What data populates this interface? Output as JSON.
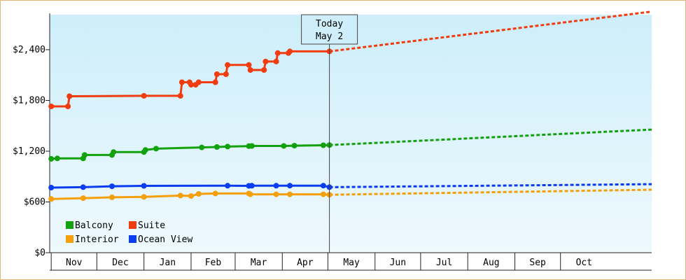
{
  "chart_data": {
    "type": "line",
    "title": "",
    "xlabel": "",
    "ylabel": "",
    "ylim": [
      0,
      2400
    ],
    "y_ticks": [
      {
        "value": 0,
        "label": "$0"
      },
      {
        "value": 600,
        "label": "$600"
      },
      {
        "value": 1200,
        "label": "$1,200"
      },
      {
        "value": 1800,
        "label": "$1,800"
      },
      {
        "value": 2400,
        "label": "$2,400"
      }
    ],
    "x_range": [
      "2023-10-31",
      "2024-11-30"
    ],
    "months": [
      {
        "label": "Nov",
        "start": "2023-11-01",
        "end": "2023-12-01"
      },
      {
        "label": "Dec",
        "start": "2023-12-01",
        "end": "2024-01-01"
      },
      {
        "label": "Jan",
        "start": "2024-01-01",
        "end": "2024-02-01"
      },
      {
        "label": "Feb",
        "start": "2024-02-01",
        "end": "2024-03-01"
      },
      {
        "label": "Mar",
        "start": "2024-03-01",
        "end": "2024-04-01"
      },
      {
        "label": "Apr",
        "start": "2024-04-01",
        "end": "2024-05-01"
      },
      {
        "label": "May",
        "start": "2024-05-01",
        "end": "2024-06-01"
      },
      {
        "label": "Jun",
        "start": "2024-06-01",
        "end": "2024-07-01"
      },
      {
        "label": "Jul",
        "start": "2024-07-01",
        "end": "2024-08-01"
      },
      {
        "label": "Aug",
        "start": "2024-08-01",
        "end": "2024-09-01"
      },
      {
        "label": "Sep",
        "start": "2024-09-01",
        "end": "2024-10-01"
      },
      {
        "label": "Oct",
        "start": "2024-10-01",
        "end": "2024-11-01"
      }
    ],
    "today": {
      "date": "2024-05-02",
      "line1": "Today",
      "line2": "May 2"
    },
    "grid": false,
    "legend": "bottom-left",
    "series": [
      {
        "name": "Balcony",
        "color": "#13a10e",
        "history": [
          [
            "2023-11-01",
            1110
          ],
          [
            "2023-11-05",
            1115
          ],
          [
            "2023-11-22",
            1115
          ],
          [
            "2023-11-23",
            1155
          ],
          [
            "2023-12-11",
            1155
          ],
          [
            "2023-12-12",
            1190
          ],
          [
            "2024-01-01",
            1190
          ],
          [
            "2024-01-02",
            1215
          ],
          [
            "2024-01-09",
            1230
          ],
          [
            "2024-02-08",
            1245
          ],
          [
            "2024-02-18",
            1250
          ],
          [
            "2024-02-25",
            1255
          ],
          [
            "2024-03-10",
            1260
          ],
          [
            "2024-03-12",
            1262
          ],
          [
            "2024-04-02",
            1262
          ],
          [
            "2024-04-09",
            1265
          ],
          [
            "2024-04-28",
            1270
          ],
          [
            "2024-05-02",
            1272
          ]
        ],
        "forecast": [
          [
            "2024-05-02",
            1272
          ],
          [
            "2024-11-30",
            1456
          ]
        ]
      },
      {
        "name": "Suite",
        "color": "#f03c0f",
        "history": [
          [
            "2023-11-01",
            1730
          ],
          [
            "2023-11-12",
            1730
          ],
          [
            "2023-11-13",
            1850
          ],
          [
            "2024-01-01",
            1855
          ],
          [
            "2024-01-25",
            1855
          ],
          [
            "2024-01-26",
            2015
          ],
          [
            "2024-01-31",
            2015
          ],
          [
            "2024-02-01",
            1985
          ],
          [
            "2024-02-04",
            1985
          ],
          [
            "2024-02-06",
            2015
          ],
          [
            "2024-02-17",
            2015
          ],
          [
            "2024-02-18",
            2110
          ],
          [
            "2024-02-24",
            2110
          ],
          [
            "2024-02-25",
            2220
          ],
          [
            "2024-03-10",
            2220
          ],
          [
            "2024-03-11",
            2160
          ],
          [
            "2024-03-20",
            2160
          ],
          [
            "2024-03-21",
            2260
          ],
          [
            "2024-03-28",
            2260
          ],
          [
            "2024-03-29",
            2360
          ],
          [
            "2024-04-05",
            2360
          ],
          [
            "2024-04-06",
            2380
          ],
          [
            "2024-05-02",
            2380
          ]
        ],
        "forecast": [
          [
            "2024-05-02",
            2380
          ],
          [
            "2024-11-30",
            2850
          ]
        ]
      },
      {
        "name": "Interior",
        "color": "#f5a00a",
        "history": [
          [
            "2023-11-01",
            635
          ],
          [
            "2023-11-22",
            645
          ],
          [
            "2023-12-11",
            655
          ],
          [
            "2024-01-01",
            660
          ],
          [
            "2024-01-25",
            675
          ],
          [
            "2024-02-01",
            670
          ],
          [
            "2024-02-06",
            695
          ],
          [
            "2024-02-17",
            700
          ],
          [
            "2024-03-10",
            700
          ],
          [
            "2024-03-11",
            690
          ],
          [
            "2024-03-28",
            690
          ],
          [
            "2024-04-06",
            690
          ],
          [
            "2024-04-28",
            690
          ],
          [
            "2024-05-02",
            685
          ]
        ],
        "forecast": [
          [
            "2024-05-02",
            685
          ],
          [
            "2024-11-30",
            745
          ]
        ]
      },
      {
        "name": "Ocean View",
        "color": "#0a3cf0",
        "history": [
          [
            "2023-11-01",
            770
          ],
          [
            "2023-11-22",
            775
          ],
          [
            "2023-12-11",
            785
          ],
          [
            "2024-01-01",
            790
          ],
          [
            "2024-02-25",
            792
          ],
          [
            "2024-03-10",
            790
          ],
          [
            "2024-03-12",
            792
          ],
          [
            "2024-03-28",
            792
          ],
          [
            "2024-04-06",
            793
          ],
          [
            "2024-04-28",
            793
          ],
          [
            "2024-05-02",
            775
          ]
        ],
        "forecast": [
          [
            "2024-05-02",
            775
          ],
          [
            "2024-11-30",
            810
          ]
        ]
      }
    ]
  }
}
